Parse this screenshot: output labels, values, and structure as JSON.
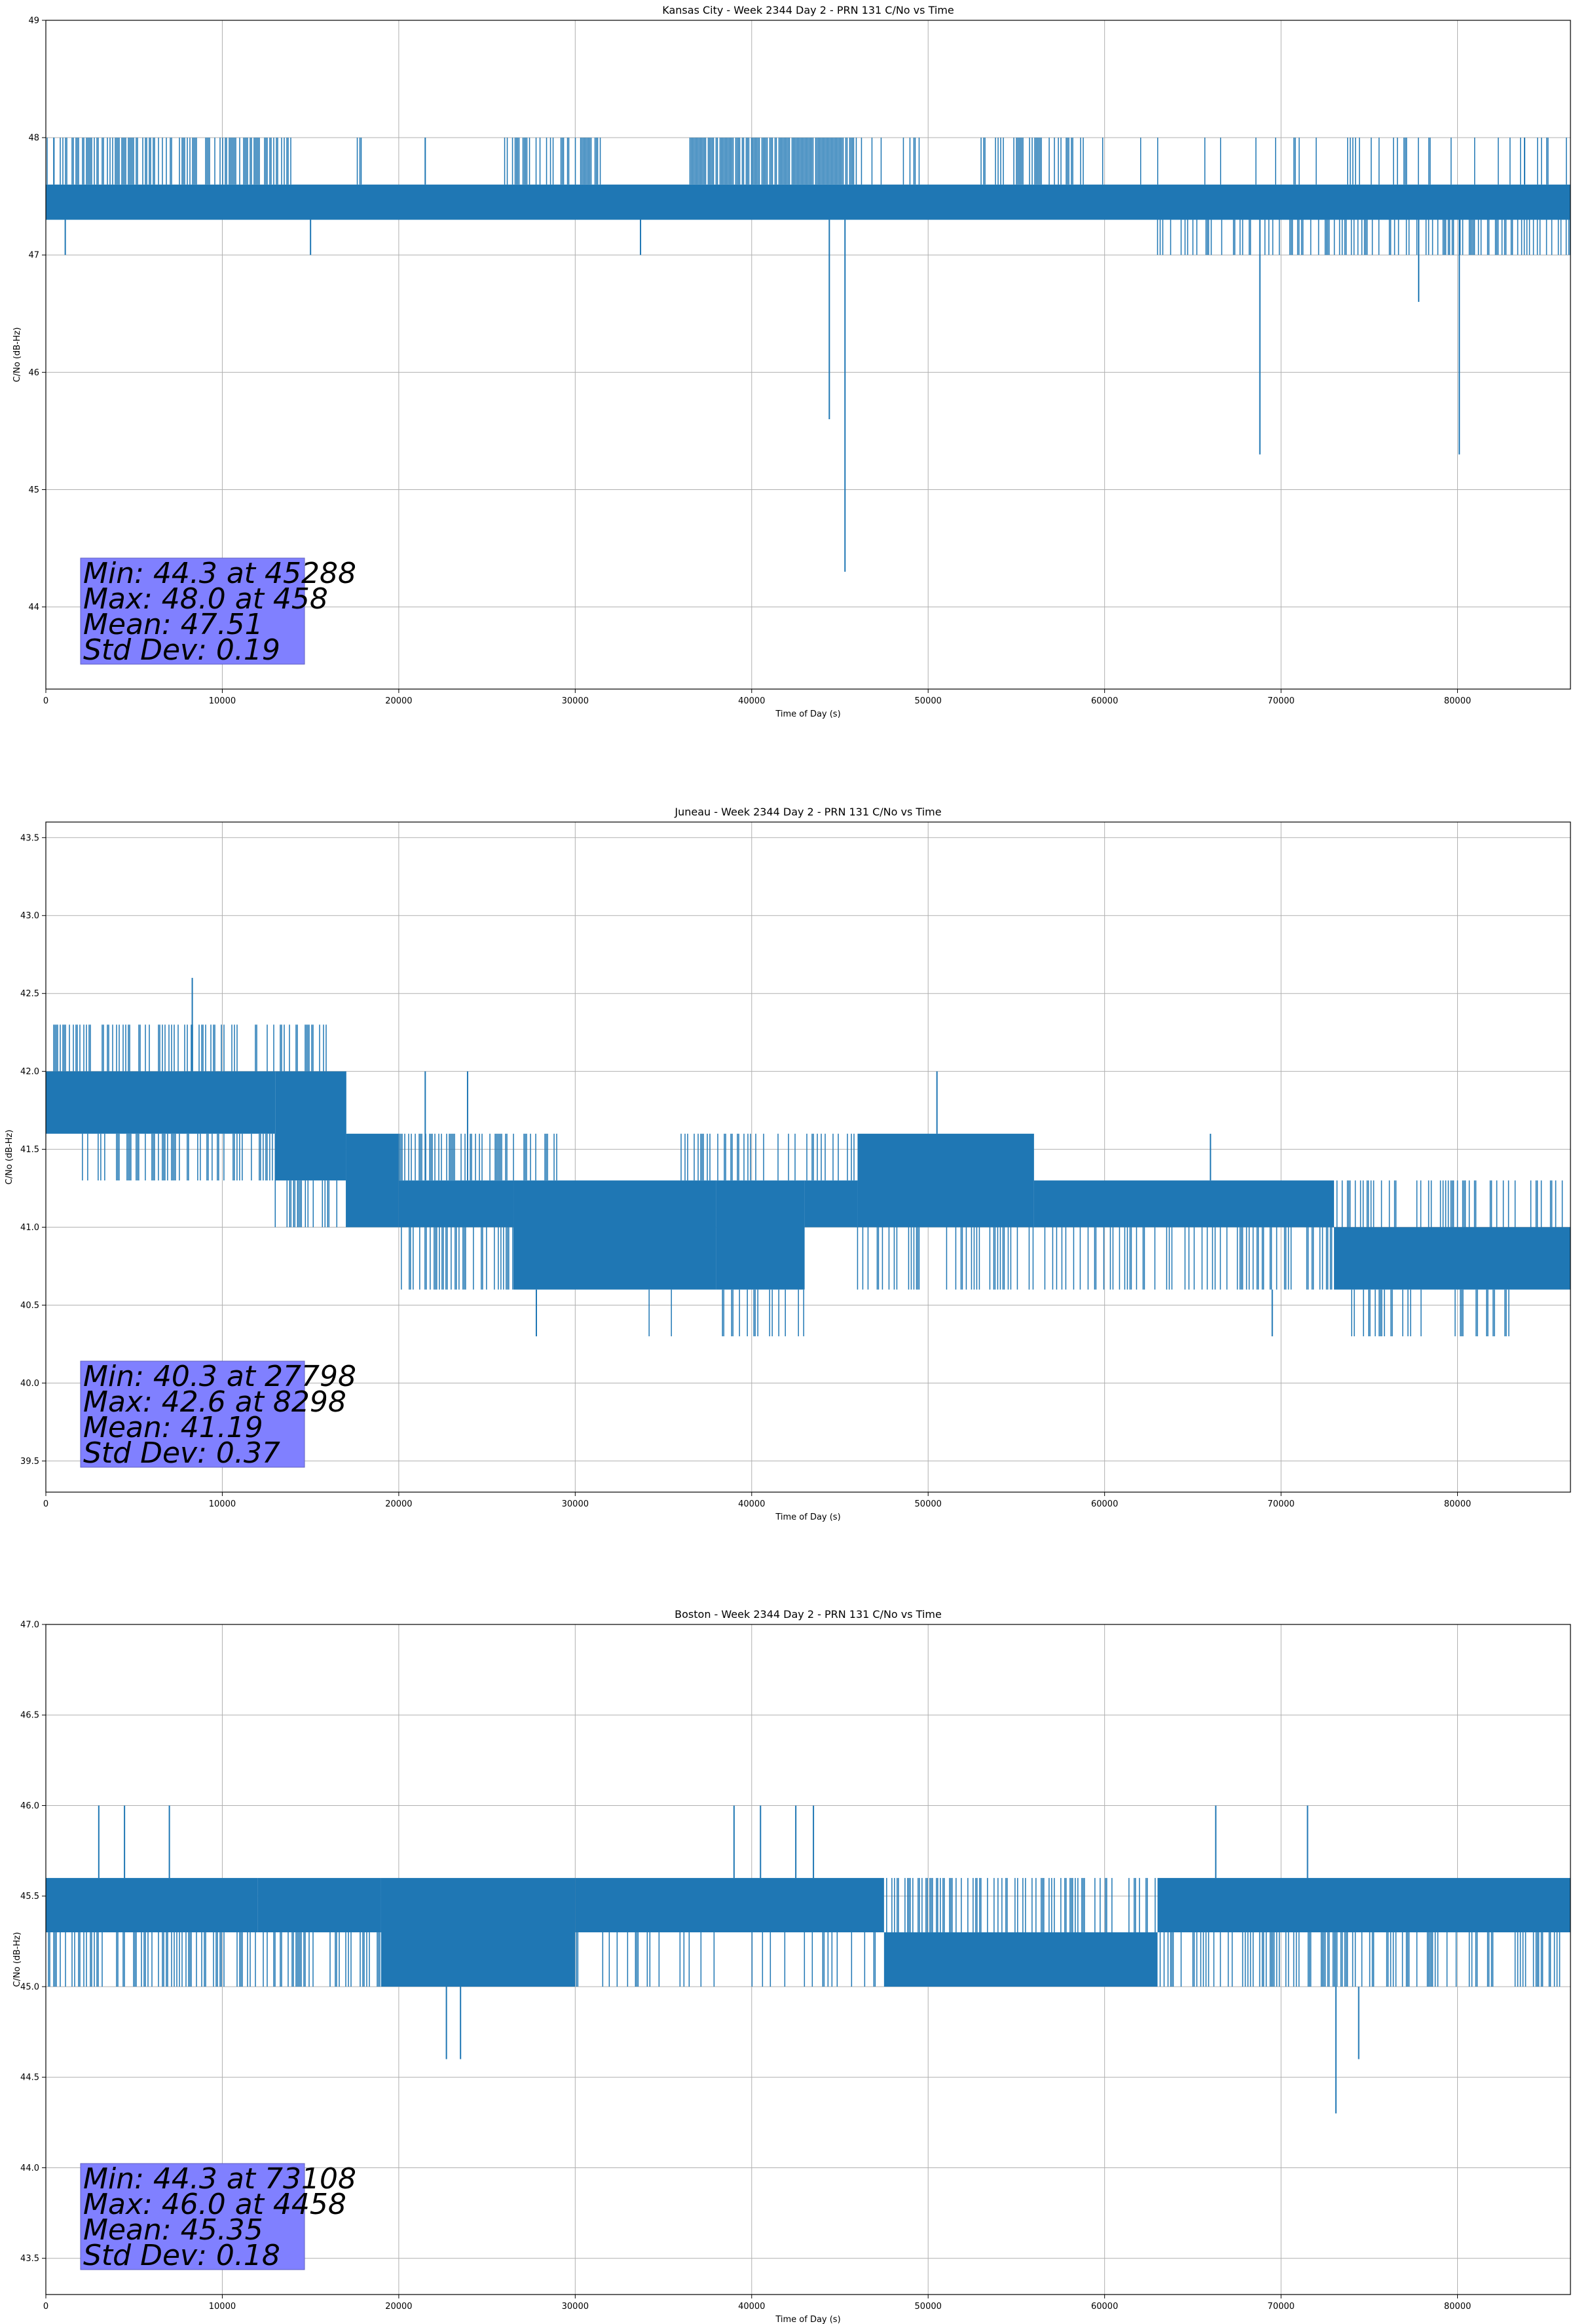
{
  "colors": {
    "series": "#1f77b4",
    "grid": "#b0b0b0",
    "statsBox": "#8080ff"
  },
  "chart_data": [
    {
      "type": "line",
      "title": "Kansas City - Week 2344 Day 2 - PRN 131 C/No vs Time",
      "xlabel": "Time of Day (s)",
      "ylabel": "C/No (dB-Hz)",
      "xlim": [
        0,
        86400
      ],
      "ylim": [
        43.3,
        49
      ],
      "xticks": [
        0,
        10000,
        20000,
        30000,
        40000,
        50000,
        60000,
        70000,
        80000
      ],
      "xtickLabels": [
        "0",
        "10000",
        "20000",
        "30000",
        "40000",
        "50000",
        "60000",
        "70000",
        "80000"
      ],
      "yticks": [
        44,
        45,
        46,
        47,
        48,
        49
      ],
      "ytickLabels": [
        "44",
        "45",
        "46",
        "47",
        "48",
        "49"
      ],
      "grid": true,
      "stats": {
        "lines": [
          "Min: 44.3 at 45288",
          "Max: 48.0 at 458",
          "Mean: 47.51",
          "Std Dev: 0.19"
        ],
        "position": "bottom-left"
      },
      "band": {
        "low": 47.3,
        "high": 47.6
      },
      "bandSegments": [],
      "upSpikes": [
        {
          "range": [
            0,
            14000
          ],
          "density": 0.55,
          "to": 48.0
        },
        {
          "range": [
            17500,
            18500
          ],
          "density": 0.2,
          "to": 48.0
        },
        {
          "range": [
            26000,
            31500
          ],
          "density": 0.5,
          "to": 48.0
        },
        {
          "range": [
            36500,
            46000
          ],
          "density": 0.85,
          "to": 48.0
        },
        {
          "range": [
            46000,
            50000
          ],
          "density": 0.15,
          "to": 48.0
        },
        {
          "range": [
            53000,
            59000
          ],
          "density": 0.4,
          "to": 48.0
        },
        {
          "range": [
            59000,
            86400
          ],
          "density": 0.08,
          "to": 48.0
        }
      ],
      "downSpikes": [
        {
          "range": [
            63000,
            86400
          ],
          "density": 0.35,
          "to": 47.0
        }
      ],
      "specials": [
        {
          "x": 458,
          "from": 47.6,
          "to": 48.0
        },
        {
          "x": 1100,
          "from": 47.3,
          "to": 47.0
        },
        {
          "x": 15000,
          "from": 47.3,
          "to": 47.0
        },
        {
          "x": 21500,
          "from": 47.6,
          "to": 48.0
        },
        {
          "x": 33700,
          "from": 47.3,
          "to": 47.0
        },
        {
          "x": 44400,
          "from": 47.3,
          "to": 45.6
        },
        {
          "x": 45288,
          "from": 47.3,
          "to": 44.3
        },
        {
          "x": 68800,
          "from": 47.3,
          "to": 45.3
        },
        {
          "x": 77800,
          "from": 47.3,
          "to": 46.6
        },
        {
          "x": 80100,
          "from": 47.3,
          "to": 45.3
        },
        {
          "x": 83800,
          "from": 47.6,
          "to": 48.0
        }
      ]
    },
    {
      "type": "line",
      "title": "Juneau - Week 2344 Day 2 - PRN 131 C/No vs Time",
      "xlabel": "Time of Day (s)",
      "ylabel": "C/No (dB-Hz)",
      "xlim": [
        0,
        86400
      ],
      "ylim": [
        39.3,
        43.6
      ],
      "xticks": [
        0,
        10000,
        20000,
        30000,
        40000,
        50000,
        60000,
        70000,
        80000
      ],
      "xtickLabels": [
        "0",
        "10000",
        "20000",
        "30000",
        "40000",
        "50000",
        "60000",
        "70000",
        "80000"
      ],
      "yticks": [
        39.5,
        40.0,
        40.5,
        41.0,
        41.5,
        42.0,
        42.5,
        43.0,
        43.5
      ],
      "ytickLabels": [
        "39.5",
        "40.0",
        "40.5",
        "41.0",
        "41.5",
        "42.0",
        "42.5",
        "43.0",
        "43.5"
      ],
      "grid": true,
      "stats": {
        "lines": [
          "Min: 40.3 at 27798",
          "Max: 42.6 at 8298",
          "Mean: 41.19",
          "Std Dev: 0.37"
        ],
        "position": "bottom-left"
      },
      "band": {
        "low": 40.6,
        "high": 42.0
      },
      "bandSegments": [
        {
          "range": [
            0,
            13000
          ],
          "low": 41.6,
          "high": 42.0
        },
        {
          "range": [
            13000,
            17000
          ],
          "low": 41.3,
          "high": 42.0
        },
        {
          "range": [
            17000,
            20000
          ],
          "low": 41.0,
          "high": 41.6
        },
        {
          "range": [
            20000,
            26500
          ],
          "low": 41.0,
          "high": 41.3
        },
        {
          "range": [
            26500,
            38000
          ],
          "low": 40.6,
          "high": 41.3
        },
        {
          "range": [
            38000,
            43000
          ],
          "low": 40.6,
          "high": 41.3
        },
        {
          "range": [
            43000,
            46000
          ],
          "low": 41.0,
          "high": 41.3
        },
        {
          "range": [
            46000,
            56000
          ],
          "low": 41.0,
          "high": 41.6
        },
        {
          "range": [
            56000,
            73000
          ],
          "low": 41.0,
          "high": 41.3
        },
        {
          "range": [
            73000,
            86400
          ],
          "low": 40.6,
          "high": 41.0
        }
      ],
      "upSpikes": [
        {
          "range": [
            0,
            17000
          ],
          "density": 0.35,
          "to": 42.3
        },
        {
          "range": [
            17000,
            29000
          ],
          "density": 0.35,
          "to": 41.6
        },
        {
          "range": [
            36000,
            48000
          ],
          "density": 0.25,
          "to": 41.6
        },
        {
          "range": [
            63000,
            86400
          ],
          "density": 0.25,
          "to": 41.3
        }
      ],
      "downSpikes": [
        {
          "range": [
            2000,
            13000
          ],
          "density": 0.35,
          "to": 41.3
        },
        {
          "range": [
            13000,
            17000
          ],
          "density": 0.3,
          "to": 41.0
        },
        {
          "range": [
            20000,
            26500
          ],
          "density": 0.4,
          "to": 40.6
        },
        {
          "range": [
            46000,
            73000
          ],
          "density": 0.3,
          "to": 40.6
        },
        {
          "range": [
            33000,
            45000
          ],
          "density": 0.1,
          "to": 40.3
        },
        {
          "range": [
            74000,
            83000
          ],
          "density": 0.25,
          "to": 40.3
        }
      ],
      "specials": [
        {
          "x": 8298,
          "from": 42.0,
          "to": 42.6
        },
        {
          "x": 27798,
          "from": 40.6,
          "to": 40.3
        },
        {
          "x": 50500,
          "from": 41.6,
          "to": 42.0
        },
        {
          "x": 23900,
          "from": 41.3,
          "to": 42.0
        },
        {
          "x": 21500,
          "from": 41.3,
          "to": 42.0
        },
        {
          "x": 66000,
          "from": 41.3,
          "to": 41.6
        },
        {
          "x": 69500,
          "from": 40.6,
          "to": 40.3
        }
      ]
    },
    {
      "type": "line",
      "title": "Boston - Week 2344 Day 2 - PRN 131 C/No vs Time",
      "xlabel": "Time of Day (s)",
      "ylabel": "C/No (dB-Hz)",
      "xlim": [
        0,
        86400
      ],
      "ylim": [
        43.3,
        47
      ],
      "xticks": [
        0,
        10000,
        20000,
        30000,
        40000,
        50000,
        60000,
        70000,
        80000
      ],
      "xtickLabels": [
        "0",
        "10000",
        "20000",
        "30000",
        "40000",
        "50000",
        "60000",
        "70000",
        "80000"
      ],
      "yticks": [
        43.5,
        44.0,
        44.5,
        45.0,
        45.5,
        46.0,
        46.5,
        47.0
      ],
      "ytickLabels": [
        "43.5",
        "44.0",
        "44.5",
        "45.0",
        "45.5",
        "46.0",
        "46.5",
        "47.0"
      ],
      "grid": true,
      "stats": {
        "lines": [
          "Min: 44.3 at 73108",
          "Max: 46.0 at 4458",
          "Mean: 45.35",
          "Std Dev: 0.18"
        ],
        "position": "bottom-left"
      },
      "band": {
        "low": 45.0,
        "high": 45.6
      },
      "bandSegments": [
        {
          "range": [
            0,
            12000
          ],
          "low": 45.3,
          "high": 45.6
        },
        {
          "range": [
            12000,
            19000
          ],
          "low": 45.3,
          "high": 45.6
        },
        {
          "range": [
            19000,
            30000
          ],
          "low": 45.0,
          "high": 45.6
        },
        {
          "range": [
            30000,
            47500
          ],
          "low": 45.3,
          "high": 45.6
        },
        {
          "range": [
            47500,
            63000
          ],
          "low": 45.0,
          "high": 45.3
        },
        {
          "range": [
            63000,
            86400
          ],
          "low": 45.3,
          "high": 45.6
        }
      ],
      "upSpikes": [
        {
          "range": [
            47500,
            63000
          ],
          "density": 0.3,
          "to": 45.6
        }
      ],
      "downSpikes": [
        {
          "range": [
            0,
            19000
          ],
          "density": 0.35,
          "to": 45.0
        },
        {
          "range": [
            30000,
            47500
          ],
          "density": 0.15,
          "to": 45.0
        },
        {
          "range": [
            63000,
            86400
          ],
          "density": 0.3,
          "to": 45.0
        }
      ],
      "specials": [
        {
          "x": 3000,
          "from": 45.6,
          "to": 46.0
        },
        {
          "x": 4458,
          "from": 45.6,
          "to": 46.0
        },
        {
          "x": 7000,
          "from": 45.6,
          "to": 46.0
        },
        {
          "x": 22700,
          "from": 45.0,
          "to": 44.6
        },
        {
          "x": 23500,
          "from": 45.0,
          "to": 44.6
        },
        {
          "x": 39000,
          "from": 45.6,
          "to": 46.0
        },
        {
          "x": 40500,
          "from": 45.6,
          "to": 46.0
        },
        {
          "x": 42500,
          "from": 45.6,
          "to": 46.0
        },
        {
          "x": 43500,
          "from": 45.6,
          "to": 46.0
        },
        {
          "x": 66300,
          "from": 45.6,
          "to": 46.0
        },
        {
          "x": 71500,
          "from": 45.6,
          "to": 46.0
        },
        {
          "x": 73108,
          "from": 45.0,
          "to": 44.3
        },
        {
          "x": 74400,
          "from": 45.0,
          "to": 44.6
        }
      ]
    }
  ]
}
